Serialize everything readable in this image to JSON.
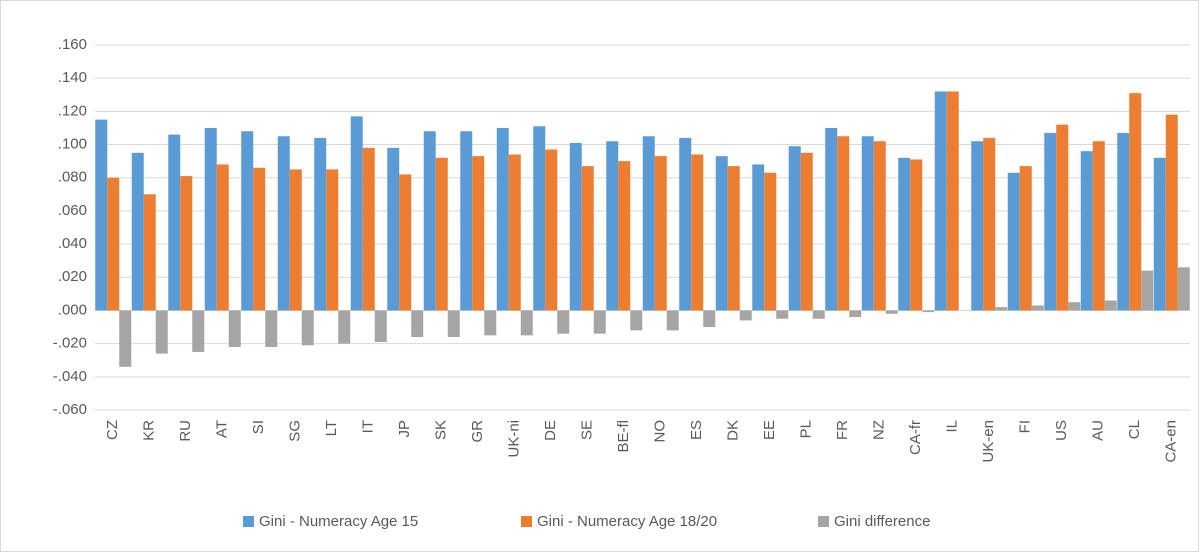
{
  "chart_data": {
    "type": "bar",
    "categories": [
      "CZ",
      "KR",
      "RU",
      "AT",
      "SI",
      "SG",
      "LT",
      "IT",
      "JP",
      "SK",
      "GR",
      "UK-ni",
      "DE",
      "SE",
      "BE-fl",
      "NO",
      "ES",
      "DK",
      "EE",
      "PL",
      "FR",
      "NZ",
      "CA-fr",
      "IL",
      "UK-en",
      "FI",
      "US",
      "AU",
      "CL",
      "CA-en"
    ],
    "series": [
      {
        "name": "Gini - Numeracy Age 15",
        "color": "#5b9bd5",
        "values": [
          0.115,
          0.095,
          0.106,
          0.11,
          0.108,
          0.105,
          0.104,
          0.117,
          0.098,
          0.108,
          0.108,
          0.11,
          0.111,
          0.101,
          0.102,
          0.105,
          0.104,
          0.093,
          0.088,
          0.099,
          0.11,
          0.105,
          0.092,
          0.132,
          0.102,
          0.083,
          0.107,
          0.096,
          0.107,
          0.092
        ]
      },
      {
        "name": "Gini - Numeracy Age 18/20",
        "color": "#ed7d31",
        "values": [
          0.08,
          0.07,
          0.081,
          0.088,
          0.086,
          0.085,
          0.085,
          0.098,
          0.082,
          0.092,
          0.093,
          0.094,
          0.097,
          0.087,
          0.09,
          0.093,
          0.094,
          0.087,
          0.083,
          0.095,
          0.105,
          0.102,
          0.091,
          0.132,
          0.104,
          0.087,
          0.112,
          0.102,
          0.131,
          0.118
        ]
      },
      {
        "name": "Gini difference",
        "color": "#a5a5a5",
        "values": [
          -0.034,
          -0.026,
          -0.025,
          -0.022,
          -0.022,
          -0.021,
          -0.02,
          -0.019,
          -0.016,
          -0.016,
          -0.015,
          -0.015,
          -0.014,
          -0.014,
          -0.012,
          -0.012,
          -0.01,
          -0.006,
          -0.005,
          -0.005,
          -0.004,
          -0.002,
          -0.001,
          0.0,
          0.002,
          0.003,
          0.005,
          0.006,
          0.024,
          0.026
        ]
      }
    ],
    "ylim": [
      -0.06,
      0.16
    ],
    "yticks": [
      {
        "value": -0.06,
        "label": "-.060"
      },
      {
        "value": -0.04,
        "label": "-.040"
      },
      {
        "value": -0.02,
        "label": "-.020"
      },
      {
        "value": 0,
        "label": ".000"
      },
      {
        "value": 0.02,
        "label": ".020"
      },
      {
        "value": 0.04,
        "label": ".040"
      },
      {
        "value": 0.06,
        "label": ".060"
      },
      {
        "value": 0.08,
        "label": ".080"
      },
      {
        "value": 0.1,
        "label": ".100"
      },
      {
        "value": 0.12,
        "label": ".120"
      },
      {
        "value": 0.14,
        "label": ".140"
      },
      {
        "value": 0.16,
        "label": ".160"
      }
    ],
    "grid": true,
    "legend": "bottom"
  }
}
